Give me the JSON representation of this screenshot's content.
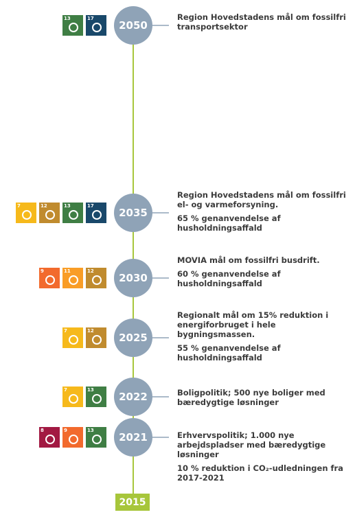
{
  "timeline": {
    "events": [
      {
        "year": "2050",
        "icons": [
          "13",
          "17"
        ],
        "texts": [
          "Region Hovedstadens mål om fossilfri transportsektor"
        ]
      },
      {
        "year": "2035",
        "icons": [
          "7",
          "12",
          "13",
          "17"
        ],
        "texts": [
          "Region Hovedstadens mål om fossilfri el- og varmeforsyning.",
          "65 % genanvendelse af husholdningsaffald"
        ]
      },
      {
        "year": "2030",
        "icons": [
          "9",
          "11",
          "12"
        ],
        "texts": [
          "MOVIA mål om fossilfri busdrift.",
          "60 % genanvendelse af husholdningsaffald"
        ]
      },
      {
        "year": "2025",
        "icons": [
          "7",
          "12"
        ],
        "texts": [
          "Regionalt mål om 15% reduktion i energiforbruget i hele bygningsmassen.",
          "55 % genanvendelse af husholdningsaffald"
        ]
      },
      {
        "year": "2022",
        "icons": [
          "7",
          "13"
        ],
        "texts": [
          "Boligpolitik; 500 nye boliger med bæredygtige løsninger"
        ]
      },
      {
        "year": "2021",
        "icons": [
          "8",
          "9",
          "13"
        ],
        "texts": [
          "Erhvervspolitik; 1.000 nye arbejdspladser med bæredygtige løsninger",
          "10 % reduktion i CO₂-udledningen fra 2017-2021"
        ]
      }
    ],
    "start": "2015"
  }
}
